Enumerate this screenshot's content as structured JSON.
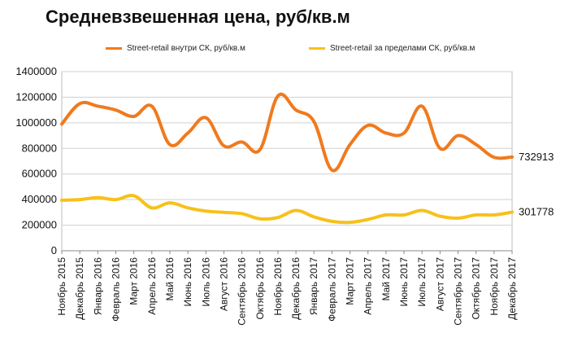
{
  "chart_data": {
    "type": "line",
    "title": "Средневзвешенная цена, руб/кв.м",
    "xlabel": "",
    "ylabel": "",
    "ylim": [
      0,
      1400000
    ],
    "yticks": [
      "0",
      "200000",
      "400000",
      "600000",
      "800000",
      "1000000",
      "1200000",
      "1400000"
    ],
    "grid": true,
    "legend_position": "top",
    "categories": [
      "Ноябрь 2015",
      "Декабрь 2015",
      "Январь 2016",
      "Февраль 2016",
      "Март 2016",
      "Апрель 2016",
      "Май 2016",
      "Июнь 2016",
      "Июль 2016",
      "Август 2016",
      "Сентябрь 2016",
      "Октябрь 2016",
      "Ноябрь 2016",
      "Декабрь 2016",
      "Январь 2017",
      "Февраль 2017",
      "Март 2017",
      "Апрель 2017",
      "Май 2017",
      "Июнь 2017",
      "Июль 2017",
      "Август 2017",
      "Сентябрь 2017",
      "Октябрь 2017",
      "Ноябрь 2017",
      "Декабрь 2017"
    ],
    "series": [
      {
        "name": "Street-retail внутри  СК, руб/кв.м",
        "color": "#F07A1E",
        "values": [
          990000,
          1150000,
          1130000,
          1100000,
          1050000,
          1130000,
          830000,
          920000,
          1040000,
          820000,
          850000,
          790000,
          1210000,
          1100000,
          1010000,
          630000,
          830000,
          980000,
          920000,
          920000,
          1130000,
          800000,
          900000,
          830000,
          730000,
          732913
        ],
        "end_label": "732913"
      },
      {
        "name": "Street-retail за пределами  СК, руб/кв.м",
        "color": "#F7C11A",
        "values": [
          395000,
          400000,
          415000,
          400000,
          430000,
          335000,
          375000,
          335000,
          310000,
          300000,
          290000,
          250000,
          260000,
          315000,
          265000,
          230000,
          222000,
          245000,
          280000,
          280000,
          315000,
          270000,
          255000,
          280000,
          280000,
          301778
        ],
        "end_label": "301778"
      }
    ]
  }
}
